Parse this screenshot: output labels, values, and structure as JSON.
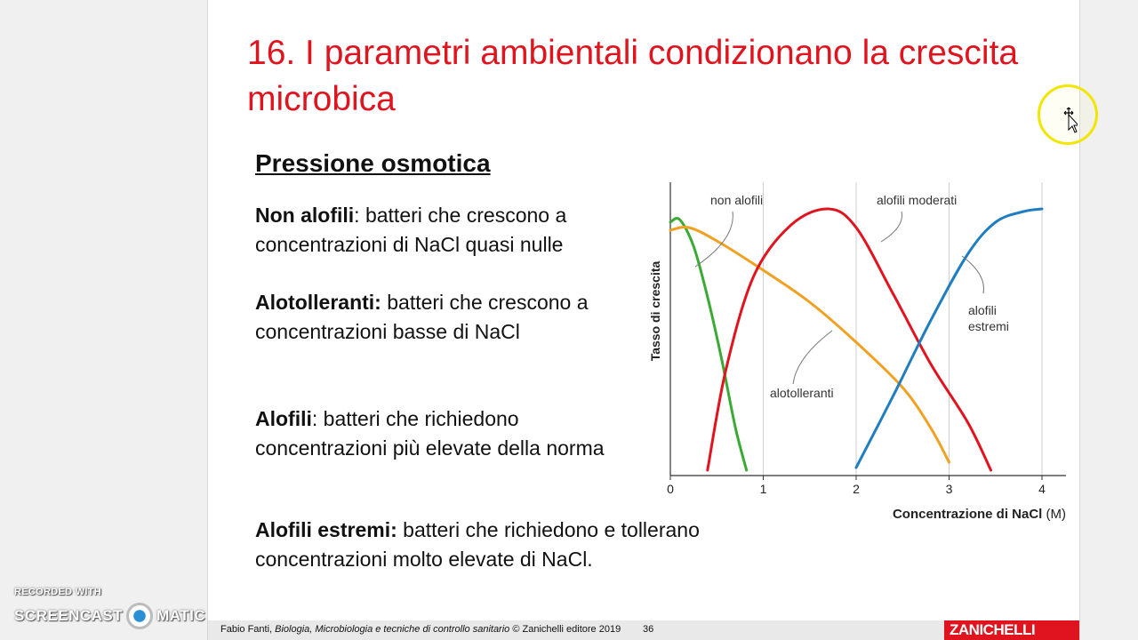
{
  "slide": {
    "title": "16. I parametri ambientali condizionano la crescita microbica",
    "subtitle": "Pressione osmotica",
    "paragraphs": [
      {
        "term": "Non alofili",
        "text": ": batteri che crescono a concentrazioni di NaCl quasi nulle"
      },
      {
        "term": "Alotolleranti:",
        "text": " batteri che crescono a concentrazioni basse di NaCl"
      },
      {
        "term": "Alofili",
        "text": ": batteri che richiedono concentrazioni più elevate della norma"
      },
      {
        "term": "Alofili estremi:",
        "text": " batteri che richiedono e tollerano concentrazioni molto elevate di NaCl."
      }
    ]
  },
  "chart_data": {
    "type": "line",
    "ylabel": "Tasso di crescita",
    "xlabel": "Concentrazione di NaCl",
    "xunit": "(M)",
    "xlim": [
      0,
      4.25
    ],
    "ylim": [
      0,
      1
    ],
    "xticks": [
      "0",
      "1",
      "2",
      "3",
      "4"
    ],
    "grid": "vertical",
    "series": [
      {
        "name": "non alofili",
        "color": "#3aaa35",
        "points": [
          [
            0,
            0.95
          ],
          [
            0.1,
            0.96
          ],
          [
            0.25,
            0.86
          ],
          [
            0.4,
            0.67
          ],
          [
            0.55,
            0.44
          ],
          [
            0.7,
            0.18
          ],
          [
            0.82,
            0.02
          ]
        ]
      },
      {
        "name": "alotolleranti",
        "color": "#f2a020",
        "points": [
          [
            0,
            0.92
          ],
          [
            0.2,
            0.93
          ],
          [
            0.5,
            0.88
          ],
          [
            1,
            0.77
          ],
          [
            1.5,
            0.65
          ],
          [
            2,
            0.5
          ],
          [
            2.5,
            0.33
          ],
          [
            2.8,
            0.18
          ],
          [
            3,
            0.05
          ]
        ]
      },
      {
        "name": "alofili moderati",
        "color": "#e1131e",
        "points": [
          [
            0.4,
            0.02
          ],
          [
            0.6,
            0.4
          ],
          [
            0.9,
            0.75
          ],
          [
            1.3,
            0.94
          ],
          [
            1.7,
            1.0
          ],
          [
            2.0,
            0.93
          ],
          [
            2.4,
            0.68
          ],
          [
            2.8,
            0.42
          ],
          [
            3.2,
            0.2
          ],
          [
            3.45,
            0.02
          ]
        ]
      },
      {
        "name": "alofili estremi",
        "color": "#1f7ec1",
        "points": [
          [
            2.0,
            0.03
          ],
          [
            2.4,
            0.3
          ],
          [
            2.8,
            0.58
          ],
          [
            3.2,
            0.83
          ],
          [
            3.5,
            0.95
          ],
          [
            3.8,
            0.99
          ],
          [
            4.0,
            1.0
          ]
        ]
      }
    ]
  },
  "footer": {
    "author": "Fabio Fanti, ",
    "book": "Biologia, Microbiologia e tecniche di controllo sanitario",
    "copyright": "  © Zanichelli editore 2019",
    "page": "36",
    "brand": "ZANICHELLI"
  },
  "watermark": {
    "line1": "RECORDED WITH",
    "part1": "SCREENCAST",
    "part2": "MATIC"
  },
  "colors": {
    "title": "#e0141e",
    "brand": "#e0141e",
    "cursor_ring": "#f2e600"
  },
  "icons": {
    "cursor": "move-cursor-icon",
    "logo": "screencast-logo-icon"
  }
}
